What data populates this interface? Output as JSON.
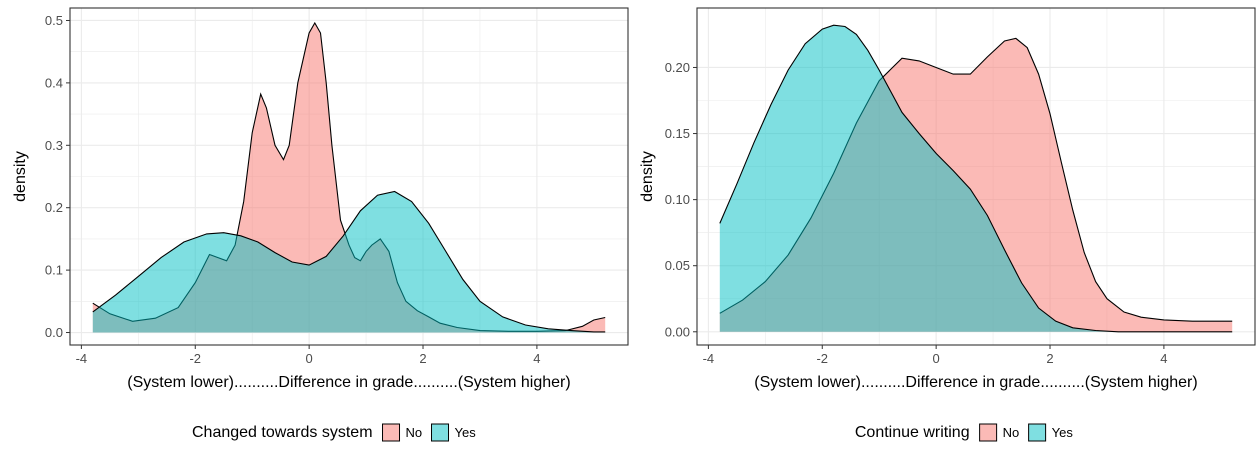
{
  "colors": {
    "no": "#F8766D",
    "yes": "#00BFC4",
    "overlap": "#7FB3B0",
    "grid": "#EBEBEB",
    "axis": "#333333"
  },
  "chart_data": [
    {
      "type": "area",
      "xlabel": "(System lower)..........Difference in grade..........(System higher)",
      "ylabel": "density",
      "xlim": [
        -4.2,
        5.6
      ],
      "ylim": [
        -0.02,
        0.52
      ],
      "xticks": [
        -4,
        -2,
        0,
        2,
        4
      ],
      "xtick_labels": [
        "-4",
        "-2",
        "0",
        "2",
        "4"
      ],
      "yticks": [
        0.0,
        0.1,
        0.2,
        0.3,
        0.4,
        0.5
      ],
      "ytick_labels": [
        "0.0",
        "0.1",
        "0.2",
        "0.3",
        "0.4",
        "0.5"
      ],
      "grid": true,
      "legend": {
        "position": "bottom",
        "title": "Changed towards system",
        "items": [
          "No",
          "Yes"
        ]
      },
      "series": [
        {
          "name": "No",
          "x": [
            -3.8,
            -3.5,
            -3.1,
            -2.7,
            -2.3,
            -2.0,
            -1.75,
            -1.6,
            -1.45,
            -1.3,
            -1.15,
            -1.0,
            -0.85,
            -0.75,
            -0.6,
            -0.45,
            -0.35,
            -0.2,
            0.0,
            0.1,
            0.2,
            0.3,
            0.4,
            0.55,
            0.7,
            0.8,
            0.9,
            1.0,
            1.1,
            1.25,
            1.4,
            1.55,
            1.7,
            1.9,
            2.1,
            2.3,
            2.6,
            3.0,
            3.5,
            4.0,
            4.5,
            4.8,
            5.0,
            5.2
          ],
          "y": [
            0.047,
            0.03,
            0.018,
            0.023,
            0.04,
            0.08,
            0.125,
            0.12,
            0.115,
            0.14,
            0.21,
            0.32,
            0.382,
            0.36,
            0.3,
            0.277,
            0.3,
            0.4,
            0.48,
            0.496,
            0.48,
            0.4,
            0.3,
            0.18,
            0.14,
            0.12,
            0.115,
            0.13,
            0.14,
            0.15,
            0.13,
            0.08,
            0.05,
            0.035,
            0.025,
            0.015,
            0.008,
            0.003,
            0.002,
            0.002,
            0.003,
            0.01,
            0.02,
            0.024
          ]
        },
        {
          "name": "Yes",
          "x": [
            -3.8,
            -3.4,
            -3.0,
            -2.6,
            -2.2,
            -1.8,
            -1.5,
            -1.2,
            -0.9,
            -0.6,
            -0.3,
            0.0,
            0.3,
            0.6,
            0.9,
            1.2,
            1.5,
            1.8,
            2.1,
            2.4,
            2.7,
            3.0,
            3.4,
            3.8,
            4.2,
            4.6,
            5.0,
            5.2
          ],
          "y": [
            0.033,
            0.06,
            0.09,
            0.12,
            0.145,
            0.158,
            0.16,
            0.155,
            0.145,
            0.128,
            0.113,
            0.108,
            0.122,
            0.155,
            0.195,
            0.22,
            0.226,
            0.21,
            0.175,
            0.13,
            0.085,
            0.05,
            0.025,
            0.012,
            0.006,
            0.003,
            0.001,
            0.001
          ]
        }
      ]
    },
    {
      "type": "area",
      "xlabel": "(System lower)..........Difference in grade..........(System higher)",
      "ylabel": "density",
      "xlim": [
        -4.2,
        5.6
      ],
      "ylim": [
        -0.01,
        0.245
      ],
      "xticks": [
        -4,
        -2,
        0,
        2,
        4
      ],
      "xtick_labels": [
        "-4",
        "-2",
        "0",
        "2",
        "4"
      ],
      "yticks": [
        0.0,
        0.05,
        0.1,
        0.15,
        0.2
      ],
      "ytick_labels": [
        "0.00",
        "0.05",
        "0.10",
        "0.15",
        "0.20"
      ],
      "grid": true,
      "legend": {
        "position": "bottom",
        "title": "Continue writing",
        "items": [
          "No",
          "Yes"
        ]
      },
      "series": [
        {
          "name": "No",
          "x": [
            -3.8,
            -3.4,
            -3.0,
            -2.6,
            -2.2,
            -1.8,
            -1.4,
            -1.0,
            -0.6,
            -0.3,
            0.0,
            0.3,
            0.6,
            0.9,
            1.2,
            1.4,
            1.6,
            1.8,
            2.0,
            2.2,
            2.4,
            2.6,
            2.8,
            3.0,
            3.3,
            3.6,
            4.0,
            4.5,
            5.0,
            5.2
          ],
          "y": [
            0.014,
            0.024,
            0.038,
            0.058,
            0.086,
            0.12,
            0.158,
            0.19,
            0.207,
            0.205,
            0.2,
            0.195,
            0.195,
            0.208,
            0.22,
            0.222,
            0.215,
            0.195,
            0.165,
            0.128,
            0.092,
            0.06,
            0.038,
            0.025,
            0.015,
            0.011,
            0.009,
            0.008,
            0.008,
            0.008
          ]
        },
        {
          "name": "Yes",
          "x": [
            -3.8,
            -3.5,
            -3.2,
            -2.9,
            -2.6,
            -2.3,
            -2.0,
            -1.8,
            -1.6,
            -1.4,
            -1.2,
            -1.0,
            -0.8,
            -0.6,
            -0.3,
            0.0,
            0.3,
            0.6,
            0.9,
            1.2,
            1.5,
            1.8,
            2.1,
            2.4,
            2.8,
            3.2,
            3.6,
            4.0,
            4.5,
            5.0,
            5.2
          ],
          "y": [
            0.082,
            0.112,
            0.143,
            0.172,
            0.198,
            0.218,
            0.229,
            0.232,
            0.231,
            0.225,
            0.213,
            0.198,
            0.182,
            0.166,
            0.15,
            0.135,
            0.122,
            0.108,
            0.088,
            0.062,
            0.037,
            0.018,
            0.008,
            0.003,
            0.001,
            0.0,
            0.0,
            0.0,
            0.0,
            0.0,
            0.0
          ]
        }
      ]
    }
  ]
}
